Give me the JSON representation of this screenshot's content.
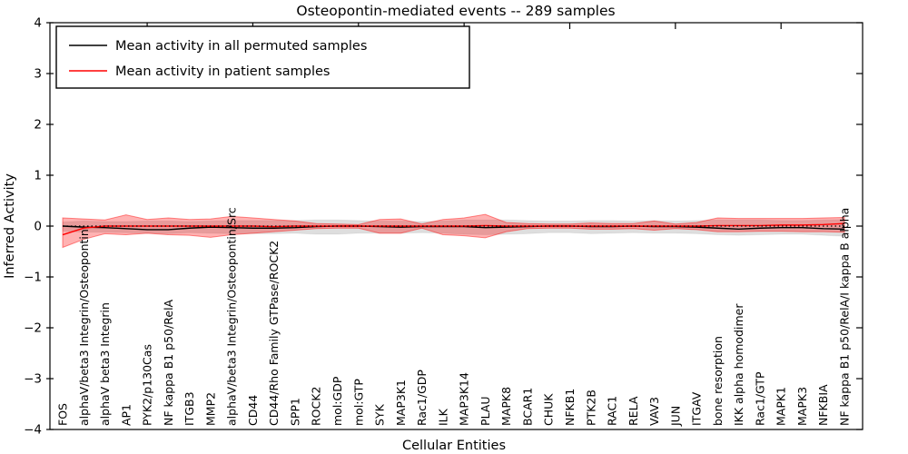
{
  "title": "Osteopontin-mediated events -- 289 samples",
  "axes": {
    "xlabel": "Cellular Entities",
    "ylabel": "Inferred Activity"
  },
  "legend": {
    "entries": [
      {
        "label": "Mean activity in all permuted samples",
        "color": "#000000"
      },
      {
        "label": "Mean activity in patient samples",
        "color": "#ff0000"
      }
    ]
  },
  "colors": {
    "permuted_line": "#000000",
    "patient_line": "#ff0000",
    "permuted_band": "rgba(0,0,0,0.13)",
    "patient_band": "rgba(255,0,0,0.30)",
    "patient_band_edge": "rgba(255,0,0,0.45)",
    "zero_line": "#000000",
    "axis": "#000000",
    "background": "#ffffff"
  },
  "chart_data": {
    "type": "line",
    "title": "Osteopontin-mediated events -- 289 samples",
    "xlabel": "Cellular Entities",
    "ylabel": "Inferred Activity",
    "ylim": [
      -4,
      4
    ],
    "grid": false,
    "legend_position": "upper left",
    "reference_line_y": 0,
    "yticks": {
      "values": [
        4,
        3,
        2,
        1,
        0,
        -1,
        -2,
        -3,
        -4
      ],
      "labels": [
        "4",
        "3",
        "2",
        "1",
        "0",
        "−1",
        "−2",
        "−3",
        "−4"
      ]
    },
    "categories": [
      "FOS",
      "alphaV/beta3 Integrin/Osteopontin",
      "alphaV beta3 Integrin",
      "AP1",
      "PYK2/p130Cas",
      "NF kappa B1 p50/RelA",
      "ITGB3",
      "MMP2",
      "alphaV/beta3 Integrin/Osteopontin/Src",
      "CD44",
      "CD44/Rho Family GTPase/ROCK2",
      "SPP1",
      "ROCK2",
      "mol:GDP",
      "mol:GTP",
      "SYK",
      "MAP3K1",
      "Rac1/GDP",
      "ILK",
      "MAP3K14",
      "PLAU",
      "MAPK8",
      "BCAR1",
      "CHUK",
      "NFKB1",
      "PTK2B",
      "RAC1",
      "RELA",
      "VAV3",
      "JUN",
      "ITGAV",
      "bone resorption",
      "IKK alpha homodimer",
      "Rac1/GTP",
      "MAPK1",
      "MAPK3",
      "NFKBIA",
      "NF kappa B1 p50/RelA/I kappa B alpha"
    ],
    "series": [
      {
        "name": "Mean activity in all permuted samples",
        "color": "#000000",
        "values": [
          0.0,
          -0.02,
          -0.03,
          -0.05,
          -0.07,
          -0.07,
          -0.04,
          -0.02,
          -0.03,
          -0.04,
          -0.04,
          -0.03,
          -0.01,
          0.0,
          0.0,
          -0.01,
          -0.02,
          -0.01,
          -0.01,
          -0.01,
          -0.03,
          -0.02,
          -0.01,
          0.0,
          0.0,
          -0.01,
          -0.01,
          0.0,
          -0.01,
          -0.01,
          -0.02,
          -0.04,
          -0.06,
          -0.04,
          -0.03,
          -0.03,
          -0.05,
          -0.06
        ]
      },
      {
        "name": "Mean activity in patient samples",
        "color": "#ff0000",
        "values": [
          -0.17,
          -0.04,
          0.0,
          0.0,
          0.0,
          0.0,
          0.0,
          0.0,
          0.0,
          0.0,
          -0.01,
          0.0,
          0.0,
          0.0,
          0.0,
          0.0,
          0.0,
          0.0,
          0.0,
          0.0,
          0.01,
          0.0,
          0.0,
          0.0,
          0.0,
          0.0,
          0.0,
          0.0,
          0.0,
          0.0,
          0.0,
          0.01,
          0.01,
          0.01,
          0.02,
          0.02,
          0.03,
          0.05
        ]
      }
    ],
    "bands": [
      {
        "name": "permuted-sample-range",
        "color": "rgba(0,0,0,0.13)",
        "edge": "rgba(0,0,0,0.06)",
        "upper": [
          0.08,
          0.1,
          0.09,
          0.09,
          0.1,
          0.1,
          0.09,
          0.1,
          0.11,
          0.11,
          0.11,
          0.11,
          0.12,
          0.12,
          0.11,
          0.1,
          0.1,
          0.09,
          0.1,
          0.12,
          0.12,
          0.12,
          0.11,
          0.1,
          0.1,
          0.11,
          0.11,
          0.1,
          0.11,
          0.1,
          0.11,
          0.12,
          0.12,
          0.12,
          0.11,
          0.11,
          0.12,
          0.13
        ],
        "lower": [
          -0.1,
          -0.12,
          -0.12,
          -0.13,
          -0.14,
          -0.15,
          -0.13,
          -0.14,
          -0.15,
          -0.15,
          -0.15,
          -0.14,
          -0.16,
          -0.16,
          -0.14,
          -0.14,
          -0.14,
          -0.13,
          -0.14,
          -0.16,
          -0.17,
          -0.16,
          -0.15,
          -0.13,
          -0.13,
          -0.15,
          -0.14,
          -0.13,
          -0.14,
          -0.14,
          -0.15,
          -0.17,
          -0.18,
          -0.17,
          -0.16,
          -0.16,
          -0.18,
          -0.2
        ]
      },
      {
        "name": "patient-sample-range",
        "color": "rgba(255,0,0,0.30)",
        "edge": "rgba(255,0,0,0.45)",
        "upper": [
          0.16,
          0.14,
          0.12,
          0.22,
          0.13,
          0.16,
          0.13,
          0.14,
          0.19,
          0.16,
          0.13,
          0.1,
          0.05,
          0.04,
          0.03,
          0.13,
          0.14,
          0.04,
          0.13,
          0.16,
          0.23,
          0.07,
          0.05,
          0.04,
          0.04,
          0.06,
          0.05,
          0.05,
          0.1,
          0.04,
          0.07,
          0.16,
          0.15,
          0.15,
          0.15,
          0.15,
          0.16,
          0.17
        ],
        "lower": [
          -0.42,
          -0.26,
          -0.15,
          -0.17,
          -0.14,
          -0.17,
          -0.18,
          -0.22,
          -0.17,
          -0.14,
          -0.11,
          -0.08,
          -0.05,
          -0.04,
          -0.04,
          -0.14,
          -0.14,
          -0.04,
          -0.17,
          -0.19,
          -0.23,
          -0.11,
          -0.05,
          -0.04,
          -0.04,
          -0.06,
          -0.06,
          -0.05,
          -0.08,
          -0.05,
          -0.07,
          -0.11,
          -0.11,
          -0.1,
          -0.1,
          -0.11,
          -0.11,
          -0.12
        ]
      }
    ]
  }
}
